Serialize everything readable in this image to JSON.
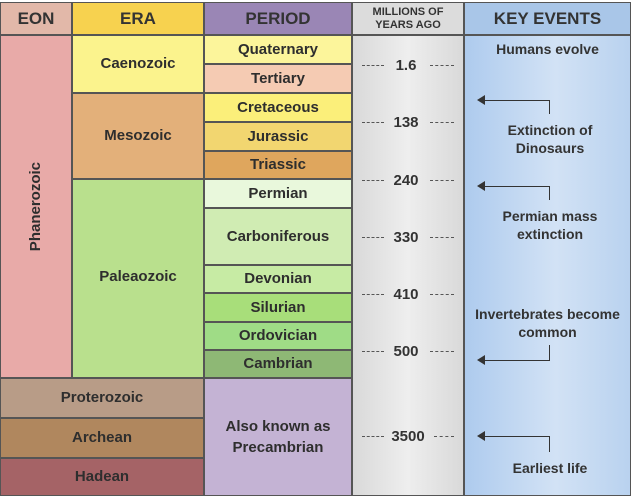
{
  "headers": {
    "eon": "EON",
    "era": "ERA",
    "period": "PERIOD",
    "myr": "MILLIONS OF YEARS AGO",
    "events": "KEY EVENTS"
  },
  "eons": [
    "Phanerozoic",
    "Proterozoic",
    "Archean",
    "Hadean"
  ],
  "eras": [
    "Caenozoic",
    "Mesozoic",
    "Paleaozoic"
  ],
  "periods": [
    "Quaternary",
    "Tertiary",
    "Cretaceous",
    "Jurassic",
    "Triassic",
    "Permian",
    "Carboniferous",
    "Devonian",
    "Silurian",
    "Ordovician",
    "Cambrian"
  ],
  "precambrian_note": "Also known as Precambrian",
  "ages": [
    "1.6",
    "138",
    "240",
    "330",
    "410",
    "500",
    "3500"
  ],
  "events": [
    "Humans evolve",
    "Extinction of Dinosaurs",
    "Permian mass extinction",
    "Invertebrates become common",
    "Earliest life"
  ],
  "colors": {
    "eon_header": "#e2b8a9",
    "era_header": "#f7d24f",
    "period_header": "#9a86b5",
    "myr_header": "#dcdcdc",
    "events_header": "#a9c6e8",
    "phanerozoic": "#e8aaa8",
    "caenozoic": "#fbf38d",
    "mesozoic": "#e3b07a",
    "paleaozoic": "#b9e08d",
    "precambrian": "#c4b3d4",
    "myr_column": "#e2e2e2",
    "events_column": "#bcd4ef",
    "proterozoic": "#b89c87",
    "archean": "#b0875e",
    "hadean": "#a56366"
  }
}
